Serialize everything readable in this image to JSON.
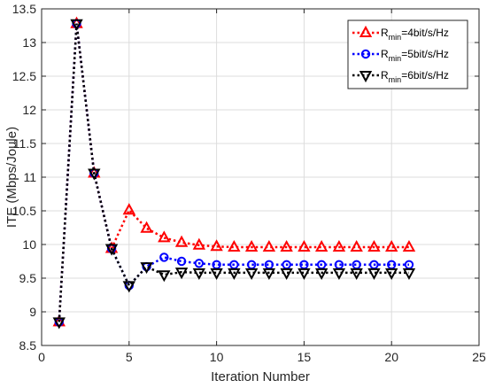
{
  "chart_data": {
    "type": "line",
    "title": "",
    "xlabel": "Iteration Number",
    "ylabel": "ITE (Mbps/Joule)",
    "xlim": [
      0,
      25
    ],
    "ylim": [
      8.5,
      13.5
    ],
    "xticks": [
      0,
      5,
      10,
      15,
      20,
      25
    ],
    "yticks": [
      8.5,
      9,
      9.5,
      10,
      10.5,
      11,
      11.5,
      12,
      12.5,
      13,
      13.5
    ],
    "grid": true,
    "legend_position": "top-right",
    "x": [
      1,
      2,
      3,
      4,
      5,
      6,
      7,
      8,
      9,
      10,
      11,
      12,
      13,
      14,
      15,
      16,
      17,
      18,
      19,
      20,
      21
    ],
    "series": [
      {
        "name": "R",
        "name_sub": "min",
        "name_suffix": "=4bit/s/Hz",
        "color": "#ff0000",
        "marker": "triangle-up",
        "values": [
          8.85,
          13.28,
          11.06,
          9.94,
          10.51,
          10.24,
          10.1,
          10.03,
          9.99,
          9.97,
          9.96,
          9.96,
          9.96,
          9.96,
          9.96,
          9.96,
          9.96,
          9.96,
          9.96,
          9.96,
          9.96
        ]
      },
      {
        "name": "R",
        "name_sub": "min",
        "name_suffix": "=5bit/s/Hz",
        "color": "#0000ff",
        "marker": "circle",
        "values": [
          8.85,
          13.28,
          11.06,
          9.94,
          9.39,
          9.67,
          9.81,
          9.75,
          9.72,
          9.7,
          9.7,
          9.7,
          9.7,
          9.7,
          9.7,
          9.7,
          9.7,
          9.7,
          9.7,
          9.7,
          9.7
        ]
      },
      {
        "name": "R",
        "name_sub": "min",
        "name_suffix": "=6bit/s/Hz",
        "color": "#000000",
        "marker": "triangle-down",
        "values": [
          8.85,
          13.28,
          11.06,
          9.94,
          9.39,
          9.67,
          9.55,
          9.59,
          9.58,
          9.58,
          9.58,
          9.58,
          9.58,
          9.58,
          9.58,
          9.58,
          9.58,
          9.58,
          9.58,
          9.58,
          9.58
        ]
      }
    ]
  }
}
